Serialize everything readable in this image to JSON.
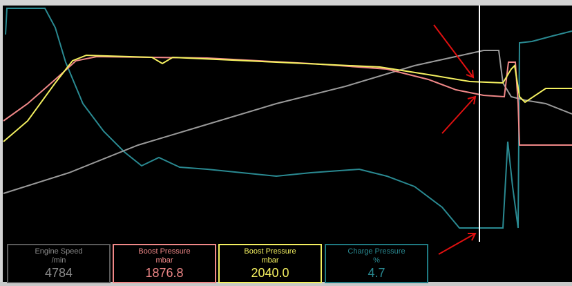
{
  "readouts": [
    {
      "name": "Engine Speed",
      "unit": "/min",
      "value": "4784"
    },
    {
      "name": "Boost Pressure",
      "unit": "mbar",
      "value": "1876.8"
    },
    {
      "name": "Boost Pressure",
      "unit": "mbar",
      "value": "2040.0"
    },
    {
      "name": "Charge Pressure",
      "unit": "%",
      "value": "4.7"
    }
  ]
}
